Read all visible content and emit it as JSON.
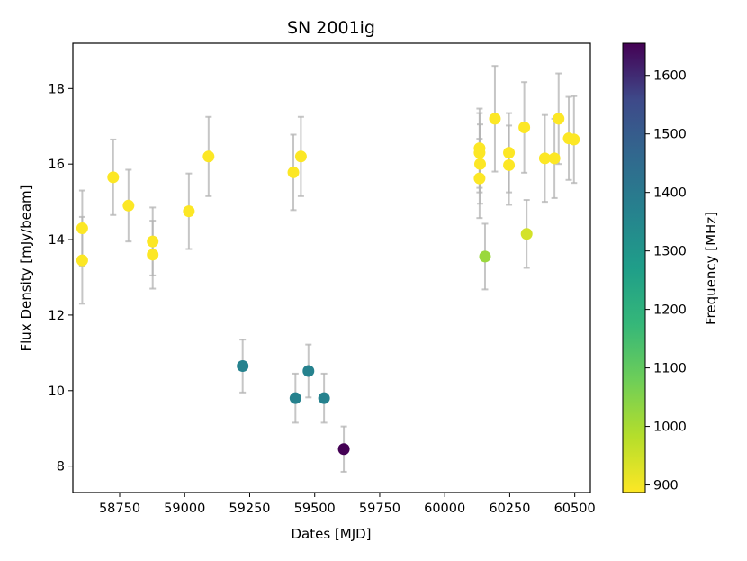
{
  "chart_data": {
    "type": "scatter",
    "title": "SN 2001ig",
    "xlabel": "Dates [MJD]",
    "ylabel": "Flux Density [mJy/beam]",
    "xlim": [
      58570,
      60560
    ],
    "ylim": [
      7.3,
      19.2
    ],
    "xticks": [
      58750,
      59000,
      59250,
      59500,
      59750,
      60000,
      60250,
      60500
    ],
    "yticks": [
      8,
      10,
      12,
      14,
      16,
      18
    ],
    "colorbar": {
      "label": "Frequency [MHz]",
      "range": [
        887,
        1655
      ],
      "ticks": [
        900,
        1000,
        1100,
        1200,
        1300,
        1400,
        1500,
        1600
      ],
      "colormap": "viridis"
    },
    "points": [
      {
        "x": 58606,
        "y": 14.3,
        "err": 1.0,
        "freq": 888
      },
      {
        "x": 58606,
        "y": 13.45,
        "err": 1.15,
        "freq": 888
      },
      {
        "x": 58725,
        "y": 15.65,
        "err": 1.0,
        "freq": 888
      },
      {
        "x": 58784,
        "y": 14.9,
        "err": 0.95,
        "freq": 888
      },
      {
        "x": 58877,
        "y": 13.95,
        "err": 0.9,
        "freq": 888
      },
      {
        "x": 58877,
        "y": 13.6,
        "err": 0.9,
        "freq": 888
      },
      {
        "x": 59016,
        "y": 14.75,
        "err": 1.0,
        "freq": 888
      },
      {
        "x": 59092,
        "y": 16.2,
        "err": 1.05,
        "freq": 888
      },
      {
        "x": 59223,
        "y": 10.65,
        "err": 0.7,
        "freq": 1367
      },
      {
        "x": 59418,
        "y": 15.78,
        "err": 1.0,
        "freq": 888
      },
      {
        "x": 59426,
        "y": 9.8,
        "err": 0.65,
        "freq": 1367
      },
      {
        "x": 59447,
        "y": 16.2,
        "err": 1.05,
        "freq": 888
      },
      {
        "x": 59476,
        "y": 10.52,
        "err": 0.7,
        "freq": 1367
      },
      {
        "x": 59536,
        "y": 9.8,
        "err": 0.65,
        "freq": 1367
      },
      {
        "x": 59612,
        "y": 8.45,
        "err": 0.6,
        "freq": 1655
      },
      {
        "x": 60134,
        "y": 16.42,
        "err": 1.05,
        "freq": 888
      },
      {
        "x": 60134,
        "y": 16.3,
        "err": 1.05,
        "freq": 888
      },
      {
        "x": 60136,
        "y": 16.0,
        "err": 1.05,
        "freq": 888
      },
      {
        "x": 60134,
        "y": 15.62,
        "err": 1.05,
        "freq": 888
      },
      {
        "x": 60155,
        "y": 13.55,
        "err": 0.87,
        "freq": 1020
      },
      {
        "x": 60193,
        "y": 17.2,
        "err": 1.4,
        "freq": 888
      },
      {
        "x": 60247,
        "y": 16.3,
        "err": 1.05,
        "freq": 888
      },
      {
        "x": 60247,
        "y": 15.97,
        "err": 1.05,
        "freq": 888
      },
      {
        "x": 60306,
        "y": 16.97,
        "err": 1.2,
        "freq": 888
      },
      {
        "x": 60315,
        "y": 14.15,
        "err": 0.9,
        "freq": 943
      },
      {
        "x": 60385,
        "y": 16.15,
        "err": 1.15,
        "freq": 888
      },
      {
        "x": 60422,
        "y": 16.15,
        "err": 1.05,
        "freq": 888
      },
      {
        "x": 60438,
        "y": 17.2,
        "err": 1.2,
        "freq": 888
      },
      {
        "x": 60477,
        "y": 16.68,
        "err": 1.1,
        "freq": 888
      },
      {
        "x": 60497,
        "y": 16.65,
        "err": 1.15,
        "freq": 888
      }
    ]
  }
}
